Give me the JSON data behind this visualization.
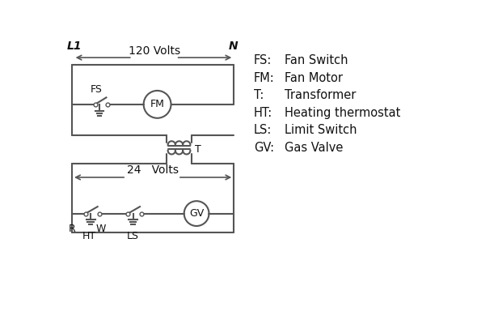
{
  "bg_color": "#ffffff",
  "line_color": "#555555",
  "text_color": "#111111",
  "lw": 1.5,
  "legend_items": [
    [
      "FS:",
      "Fan Switch"
    ],
    [
      "FM:",
      "Fan Motor"
    ],
    [
      "T:",
      "Transformer"
    ],
    [
      "HT:",
      "Heating thermostat"
    ],
    [
      "LS:",
      "Limit Switch"
    ],
    [
      "GV:",
      "Gas Valve"
    ]
  ]
}
